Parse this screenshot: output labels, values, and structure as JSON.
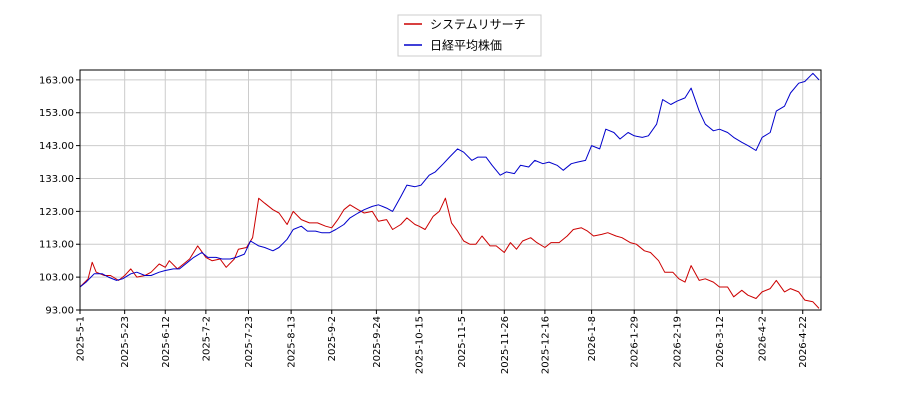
{
  "chart_data": {
    "type": "line",
    "title": "",
    "xlabel": "",
    "ylabel": "",
    "ylim": [
      93.0,
      166.0
    ],
    "yticks": [
      "93.00",
      "103.00",
      "113.00",
      "123.00",
      "133.00",
      "143.00",
      "153.00",
      "163.00"
    ],
    "yticks_values": [
      93,
      103,
      113,
      123,
      133,
      143,
      153,
      163
    ],
    "xlim": [
      "2025-5-1",
      "2026-5-1"
    ],
    "xticks": [
      "2025-5-1",
      "2025-5-23",
      "2025-6-12",
      "2025-7-2",
      "2025-7-23",
      "2025-8-13",
      "2025-9-2",
      "2025-9-24",
      "2025-10-15",
      "2025-11-5",
      "2025-11-26",
      "2025-12-16",
      "2026-1-8",
      "2026-1-29",
      "2026-2-19",
      "2026-3-12",
      "2026-4-2",
      "2026-4-22"
    ],
    "grid": true,
    "legend_position": "top-center",
    "series": [
      {
        "name": "システムリサーチ",
        "color": "#cc0000",
        "points": [
          [
            "2025-5-1",
            100.0
          ],
          [
            "2025-5-5",
            102.5
          ],
          [
            "2025-5-7",
            107.5
          ],
          [
            "2025-5-9",
            104.5
          ],
          [
            "2025-5-13",
            103.5
          ],
          [
            "2025-5-16",
            103.5
          ],
          [
            "2025-5-20",
            102.0
          ],
          [
            "2025-5-23",
            103.5
          ],
          [
            "2025-5-26",
            105.5
          ],
          [
            "2025-5-29",
            103.0
          ],
          [
            "2025-6-2",
            103.5
          ],
          [
            "2025-6-5",
            104.5
          ],
          [
            "2025-6-9",
            107.0
          ],
          [
            "2025-6-12",
            106.0
          ],
          [
            "2025-6-14",
            108.0
          ],
          [
            "2025-6-18",
            105.5
          ],
          [
            "2025-6-21",
            107.0
          ],
          [
            "2025-6-24",
            108.5
          ],
          [
            "2025-6-28",
            112.5
          ],
          [
            "2025-7-2",
            109.0
          ],
          [
            "2025-7-5",
            108.0
          ],
          [
            "2025-7-9",
            108.5
          ],
          [
            "2025-7-12",
            106.0
          ],
          [
            "2025-7-16",
            108.5
          ],
          [
            "2025-7-18",
            111.5
          ],
          [
            "2025-7-22",
            112.0
          ],
          [
            "2025-7-25",
            115.0
          ],
          [
            "2025-7-28",
            127.0
          ],
          [
            "2025-7-31",
            125.5
          ],
          [
            "2025-8-4",
            123.5
          ],
          [
            "2025-8-7",
            122.5
          ],
          [
            "2025-8-11",
            119.0
          ],
          [
            "2025-8-14",
            123.0
          ],
          [
            "2025-8-18",
            120.5
          ],
          [
            "2025-8-22",
            119.5
          ],
          [
            "2025-8-26",
            119.5
          ],
          [
            "2025-8-30",
            118.5
          ],
          [
            "2025-9-2",
            118.0
          ],
          [
            "2025-9-5",
            120.5
          ],
          [
            "2025-9-8",
            123.5
          ],
          [
            "2025-9-11",
            125.0
          ],
          [
            "2025-9-15",
            123.5
          ],
          [
            "2025-9-18",
            122.5
          ],
          [
            "2025-9-22",
            123.0
          ],
          [
            "2025-9-25",
            120.0
          ],
          [
            "2025-9-29",
            120.5
          ],
          [
            "2025-10-2",
            117.5
          ],
          [
            "2025-10-6",
            119.0
          ],
          [
            "2025-10-9",
            121.0
          ],
          [
            "2025-10-13",
            119.0
          ],
          [
            "2025-10-15",
            118.5
          ],
          [
            "2025-10-18",
            117.5
          ],
          [
            "2025-10-22",
            121.5
          ],
          [
            "2025-10-25",
            123.0
          ],
          [
            "2025-10-28",
            127.0
          ],
          [
            "2025-10-31",
            119.5
          ],
          [
            "2025-11-3",
            117.0
          ],
          [
            "2025-11-6",
            114.0
          ],
          [
            "2025-11-9",
            113.0
          ],
          [
            "2025-11-12",
            113.0
          ],
          [
            "2025-11-15",
            115.5
          ],
          [
            "2025-11-19",
            112.5
          ],
          [
            "2025-11-22",
            112.5
          ],
          [
            "2025-11-26",
            110.5
          ],
          [
            "2025-11-29",
            113.5
          ],
          [
            "2025-12-2",
            111.5
          ],
          [
            "2025-12-5",
            114.0
          ],
          [
            "2025-12-9",
            115.0
          ],
          [
            "2025-12-12",
            113.5
          ],
          [
            "2025-12-16",
            112.0
          ],
          [
            "2025-12-19",
            113.5
          ],
          [
            "2025-12-23",
            113.5
          ],
          [
            "2025-12-27",
            115.5
          ],
          [
            "2025-12-30",
            117.5
          ],
          [
            "2026-1-3",
            118.0
          ],
          [
            "2026-1-6",
            117.0
          ],
          [
            "2026-1-9",
            115.5
          ],
          [
            "2026-1-13",
            116.0
          ],
          [
            "2026-1-16",
            116.5
          ],
          [
            "2026-1-20",
            115.5
          ],
          [
            "2026-1-23",
            115.0
          ],
          [
            "2026-1-27",
            113.5
          ],
          [
            "2026-1-30",
            113.0
          ],
          [
            "2026-2-3",
            111.0
          ],
          [
            "2026-2-6",
            110.5
          ],
          [
            "2026-2-10",
            108.0
          ],
          [
            "2026-2-13",
            104.5
          ],
          [
            "2026-2-17",
            104.5
          ],
          [
            "2026-2-20",
            102.5
          ],
          [
            "2026-2-23",
            101.5
          ],
          [
            "2026-2-26",
            106.5
          ],
          [
            "2026-3-2",
            102.0
          ],
          [
            "2026-3-5",
            102.5
          ],
          [
            "2026-3-9",
            101.5
          ],
          [
            "2026-3-12",
            100.0
          ],
          [
            "2026-3-16",
            100.0
          ],
          [
            "2026-3-19",
            97.0
          ],
          [
            "2026-3-23",
            99.0
          ],
          [
            "2026-3-26",
            97.5
          ],
          [
            "2026-3-30",
            96.5
          ],
          [
            "2026-4-2",
            98.5
          ],
          [
            "2026-4-6",
            99.5
          ],
          [
            "2026-4-9",
            102.0
          ],
          [
            "2026-4-13",
            98.5
          ],
          [
            "2026-4-16",
            99.5
          ],
          [
            "2026-4-20",
            98.5
          ],
          [
            "2026-4-23",
            96.0
          ],
          [
            "2026-4-27",
            95.5
          ],
          [
            "2026-4-30",
            93.5
          ]
        ]
      },
      {
        "name": "日経平均株価",
        "color": "#0000cc",
        "points": [
          [
            "2025-5-1",
            100.0
          ],
          [
            "2025-5-4",
            101.5
          ],
          [
            "2025-5-8",
            104.0
          ],
          [
            "2025-5-12",
            104.0
          ],
          [
            "2025-5-15",
            103.0
          ],
          [
            "2025-5-19",
            102.0
          ],
          [
            "2025-5-22",
            102.5
          ],
          [
            "2025-5-26",
            104.0
          ],
          [
            "2025-5-29",
            104.5
          ],
          [
            "2025-6-2",
            103.5
          ],
          [
            "2025-6-5",
            103.5
          ],
          [
            "2025-6-9",
            104.5
          ],
          [
            "2025-6-12",
            105.0
          ],
          [
            "2025-6-16",
            105.5
          ],
          [
            "2025-6-19",
            105.5
          ],
          [
            "2025-6-23",
            107.5
          ],
          [
            "2025-6-26",
            109.0
          ],
          [
            "2025-6-30",
            110.5
          ],
          [
            "2025-7-3",
            109.0
          ],
          [
            "2025-7-7",
            109.0
          ],
          [
            "2025-7-10",
            108.5
          ],
          [
            "2025-7-14",
            108.5
          ],
          [
            "2025-7-17",
            109.0
          ],
          [
            "2025-7-21",
            110.0
          ],
          [
            "2025-7-24",
            114.0
          ],
          [
            "2025-7-28",
            112.5
          ],
          [
            "2025-7-31",
            112.0
          ],
          [
            "2025-8-4",
            111.0
          ],
          [
            "2025-8-7",
            112.0
          ],
          [
            "2025-8-11",
            114.5
          ],
          [
            "2025-8-14",
            117.5
          ],
          [
            "2025-8-18",
            118.5
          ],
          [
            "2025-8-21",
            117.0
          ],
          [
            "2025-8-25",
            117.0
          ],
          [
            "2025-8-28",
            116.5
          ],
          [
            "2025-9-1",
            116.5
          ],
          [
            "2025-9-4",
            117.5
          ],
          [
            "2025-9-8",
            119.0
          ],
          [
            "2025-9-11",
            121.0
          ],
          [
            "2025-9-15",
            122.5
          ],
          [
            "2025-9-18",
            123.5
          ],
          [
            "2025-9-22",
            124.5
          ],
          [
            "2025-9-25",
            125.0
          ],
          [
            "2025-9-29",
            124.0
          ],
          [
            "2025-10-2",
            123.0
          ],
          [
            "2025-10-6",
            127.5
          ],
          [
            "2025-10-9",
            131.0
          ],
          [
            "2025-10-13",
            130.5
          ],
          [
            "2025-10-16",
            131.0
          ],
          [
            "2025-10-20",
            134.0
          ],
          [
            "2025-10-23",
            135.0
          ],
          [
            "2025-10-27",
            137.5
          ],
          [
            "2025-10-30",
            139.5
          ],
          [
            "2025-11-3",
            142.0
          ],
          [
            "2025-11-6",
            141.0
          ],
          [
            "2025-11-10",
            138.5
          ],
          [
            "2025-11-13",
            139.5
          ],
          [
            "2025-11-17",
            139.5
          ],
          [
            "2025-11-20",
            137.0
          ],
          [
            "2025-11-24",
            134.0
          ],
          [
            "2025-11-27",
            135.0
          ],
          [
            "2025-12-1",
            134.5
          ],
          [
            "2025-12-4",
            137.0
          ],
          [
            "2025-12-8",
            136.5
          ],
          [
            "2025-12-11",
            138.5
          ],
          [
            "2025-12-15",
            137.5
          ],
          [
            "2025-12-18",
            138.0
          ],
          [
            "2025-12-22",
            137.0
          ],
          [
            "2025-12-25",
            135.5
          ],
          [
            "2025-12-29",
            137.5
          ],
          [
            "2026-1-1",
            138.0
          ],
          [
            "2026-1-5",
            138.5
          ],
          [
            "2026-1-8",
            143.0
          ],
          [
            "2026-1-12",
            142.0
          ],
          [
            "2026-1-15",
            148.0
          ],
          [
            "2026-1-19",
            147.0
          ],
          [
            "2026-1-22",
            145.0
          ],
          [
            "2026-1-26",
            147.0
          ],
          [
            "2026-1-29",
            146.0
          ],
          [
            "2026-2-2",
            145.5
          ],
          [
            "2026-2-5",
            146.0
          ],
          [
            "2026-2-9",
            149.5
          ],
          [
            "2026-2-12",
            157.0
          ],
          [
            "2026-2-16",
            155.5
          ],
          [
            "2026-2-19",
            156.5
          ],
          [
            "2026-2-23",
            157.5
          ],
          [
            "2026-2-26",
            160.5
          ],
          [
            "2026-3-2",
            153.5
          ],
          [
            "2026-3-5",
            149.5
          ],
          [
            "2026-3-9",
            147.5
          ],
          [
            "2026-3-12",
            148.0
          ],
          [
            "2026-3-16",
            147.0
          ],
          [
            "2026-3-19",
            145.5
          ],
          [
            "2026-3-23",
            144.0
          ],
          [
            "2026-3-26",
            143.0
          ],
          [
            "2026-3-30",
            141.5
          ],
          [
            "2026-4-2",
            145.5
          ],
          [
            "2026-4-6",
            147.0
          ],
          [
            "2026-4-9",
            153.5
          ],
          [
            "2026-4-13",
            155.0
          ],
          [
            "2026-4-16",
            159.0
          ],
          [
            "2026-4-20",
            162.0
          ],
          [
            "2026-4-23",
            162.5
          ],
          [
            "2026-4-27",
            165.0
          ],
          [
            "2026-4-30",
            163.0
          ]
        ]
      }
    ]
  }
}
